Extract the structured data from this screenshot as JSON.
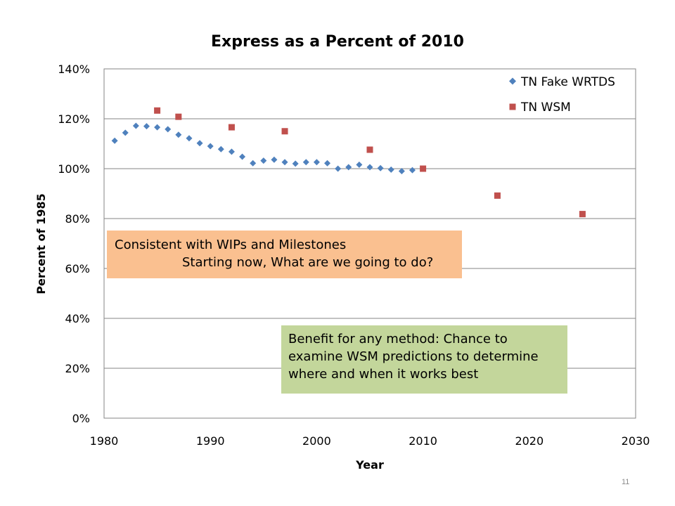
{
  "chart_data": {
    "type": "scatter",
    "title": "Express as a Percent of 2010",
    "xlabel": "Year",
    "ylabel": "Percent of 1985",
    "xlim": [
      1980,
      2030
    ],
    "ylim": [
      0,
      140
    ],
    "x_ticks": [
      "1980",
      "1990",
      "2000",
      "2010",
      "2020",
      "2030"
    ],
    "y_ticks": [
      "0%",
      "20%",
      "40%",
      "60%",
      "80%",
      "100%",
      "120%",
      "140%"
    ],
    "grid": "horizontal",
    "legend_position": "top-right",
    "series": [
      {
        "name": "TN Fake WRTDS",
        "marker": "diamond",
        "color": "#4f81bd",
        "points": [
          [
            1981,
            111.2
          ],
          [
            1982,
            114.4
          ],
          [
            1983,
            117.2
          ],
          [
            1984,
            117.0
          ],
          [
            1985,
            116.6
          ],
          [
            1986,
            115.8
          ],
          [
            1987,
            113.6
          ],
          [
            1988,
            112.2
          ],
          [
            1989,
            110.2
          ],
          [
            1990,
            109.0
          ],
          [
            1991,
            107.8
          ],
          [
            1992,
            106.8
          ],
          [
            1993,
            104.8
          ],
          [
            1994,
            102.2
          ],
          [
            1995,
            103.2
          ],
          [
            1996,
            103.6
          ],
          [
            1997,
            102.6
          ],
          [
            1998,
            102.0
          ],
          [
            1999,
            102.6
          ],
          [
            2000,
            102.6
          ],
          [
            2001,
            102.2
          ],
          [
            2002,
            100.0
          ],
          [
            2003,
            100.6
          ],
          [
            2004,
            101.6
          ],
          [
            2005,
            100.6
          ],
          [
            2006,
            100.2
          ],
          [
            2007,
            99.6
          ],
          [
            2008,
            99.0
          ],
          [
            2009,
            99.4
          ]
        ]
      },
      {
        "name": "TN WSM",
        "marker": "square",
        "color": "#c0504d",
        "points": [
          [
            1985,
            123.3
          ],
          [
            1987,
            120.8
          ],
          [
            1992,
            116.6
          ],
          [
            1997,
            115.0
          ],
          [
            2005,
            107.6
          ],
          [
            2010,
            100.0
          ],
          [
            2017,
            89.2
          ],
          [
            2025,
            81.8
          ]
        ]
      }
    ]
  },
  "callouts": {
    "orange": {
      "line1": "Consistent with WIPs and Milestones",
      "line2": "Starting now, What are we going to do?"
    },
    "green": {
      "line1": "Benefit for any method: Chance to",
      "line2": "examine WSM predictions to determine",
      "line3": "where and when it works best"
    }
  },
  "page_number": "11"
}
